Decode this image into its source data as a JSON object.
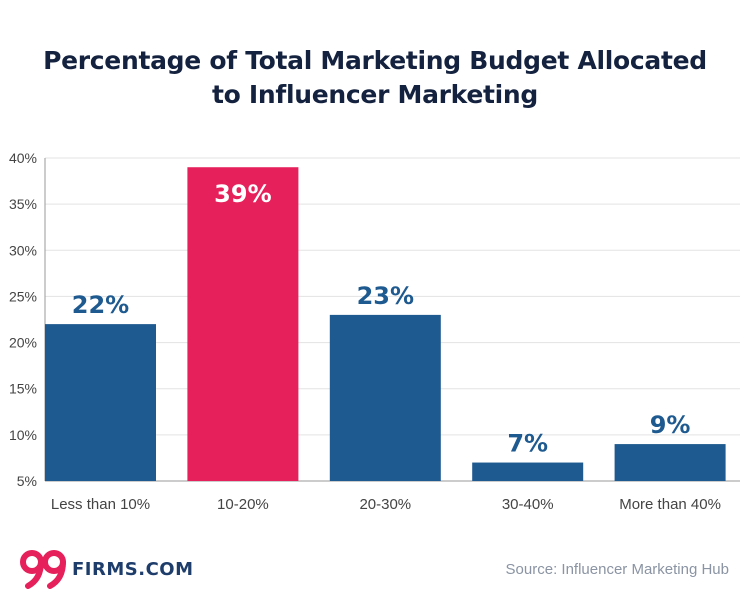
{
  "chart_data": {
    "type": "bar",
    "title_lines": [
      "Percentage of Total Marketing Budget Allocated",
      "to Influencer Marketing"
    ],
    "categories": [
      "Less than 10%",
      "10-20%",
      "20-30%",
      "30-40%",
      "More than 40%"
    ],
    "values": [
      22,
      39,
      23,
      7,
      9
    ],
    "data_labels": [
      "22%",
      "39%",
      "23%",
      "7%",
      "9%"
    ],
    "highlight_index": 1,
    "ylim": [
      5,
      40
    ],
    "yticks": [
      5,
      10,
      15,
      20,
      25,
      30,
      35,
      40
    ],
    "ytick_labels": [
      "5%",
      "10%",
      "15%",
      "20%",
      "25%",
      "30%",
      "35%",
      "40%"
    ],
    "xlabel": "",
    "ylabel": "",
    "grid": true,
    "colors": {
      "bar": "#1e5a8f",
      "highlight": "#e6205a",
      "label_dark": "#1e5a8f",
      "label_light": "#ffffff",
      "grid": "#e3e3e3",
      "axis": "#9a9a9a",
      "tick_text": "#444444"
    }
  },
  "branding": {
    "logo_icon": "99-logo-icon",
    "logo_text": "FIRMS.COM",
    "logo_color": "#e6205a"
  },
  "source_text": "Source: Influencer Marketing Hub"
}
